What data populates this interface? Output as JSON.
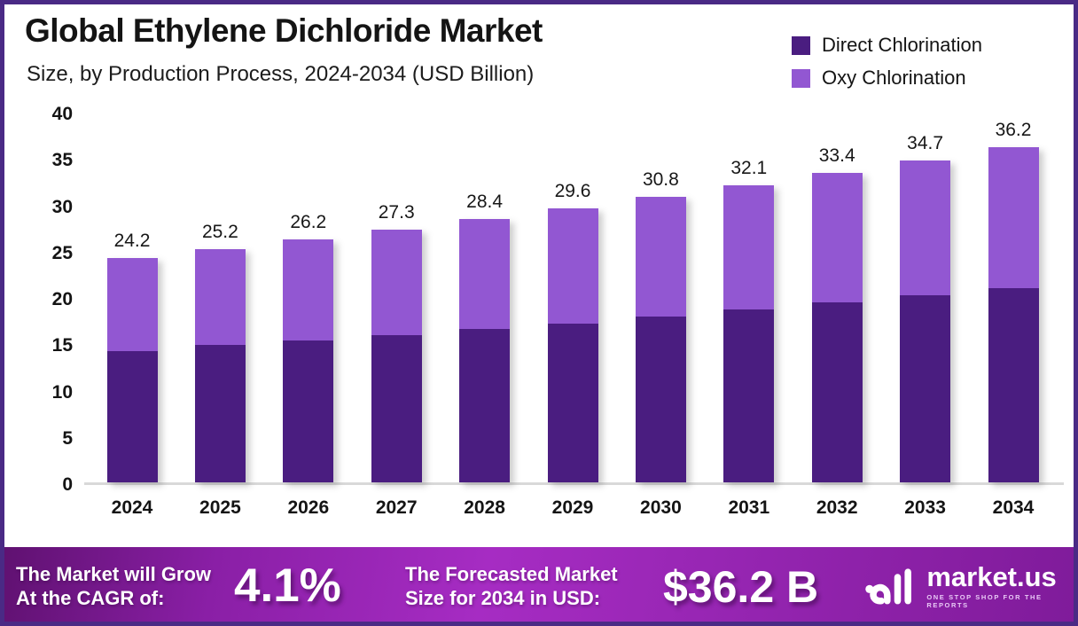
{
  "window": {
    "border_color": "#4a2a85",
    "background": "#ffffff"
  },
  "header": {
    "title": "Global Ethylene Dichloride Market",
    "subtitle": "Size, by Production Process, 2024-2034 (USD Billion)"
  },
  "legend": {
    "items": [
      {
        "label": "Direct Chlorination",
        "color": "#4a1d80"
      },
      {
        "label": "Oxy Chlorination",
        "color": "#9257d2"
      }
    ]
  },
  "chart_data": {
    "type": "bar",
    "stacked": true,
    "title": "Global Ethylene Dichloride Market",
    "subtitle": "Size, by Production Process, 2024-2034 (USD Billion)",
    "categories": [
      "2024",
      "2025",
      "2026",
      "2027",
      "2028",
      "2029",
      "2030",
      "2031",
      "2032",
      "2033",
      "2034"
    ],
    "series": [
      {
        "name": "Direct Chlorination",
        "color": "#4a1d80",
        "values": [
          14.2,
          14.8,
          15.3,
          15.9,
          16.6,
          17.1,
          17.9,
          18.7,
          19.4,
          20.2,
          21.0
        ]
      },
      {
        "name": "Oxy Chlorination",
        "color": "#9257d2",
        "values": [
          10.0,
          10.4,
          10.9,
          11.4,
          11.8,
          12.5,
          12.9,
          13.4,
          14.0,
          14.5,
          15.2
        ]
      }
    ],
    "totals": [
      24.2,
      25.2,
      26.2,
      27.3,
      28.4,
      29.6,
      30.8,
      32.1,
      33.4,
      34.7,
      36.2
    ],
    "total_labels": [
      "24.2",
      "25.2",
      "26.2",
      "27.3",
      "28.4",
      "29.6",
      "30.8",
      "32.1",
      "33.4",
      "34.7",
      "36.2"
    ],
    "xlabel": "",
    "ylabel": "",
    "ylim": [
      0,
      40
    ],
    "yticks": [
      "0",
      "5",
      "10",
      "15",
      "20",
      "25",
      "30",
      "35",
      "40"
    ],
    "grid": false,
    "legend_position": "top-right"
  },
  "footer": {
    "cagr_label_line1": "The Market will Grow",
    "cagr_label_line2": "At the CAGR of:",
    "cagr_value": "4.1%",
    "forecast_label_line1": "The Forecasted Market",
    "forecast_label_line2": "Size for 2034 in USD:",
    "forecast_value": "$36.2 B",
    "brand_name": "market.us",
    "brand_tagline": "ONE STOP SHOP FOR THE REPORTS"
  }
}
